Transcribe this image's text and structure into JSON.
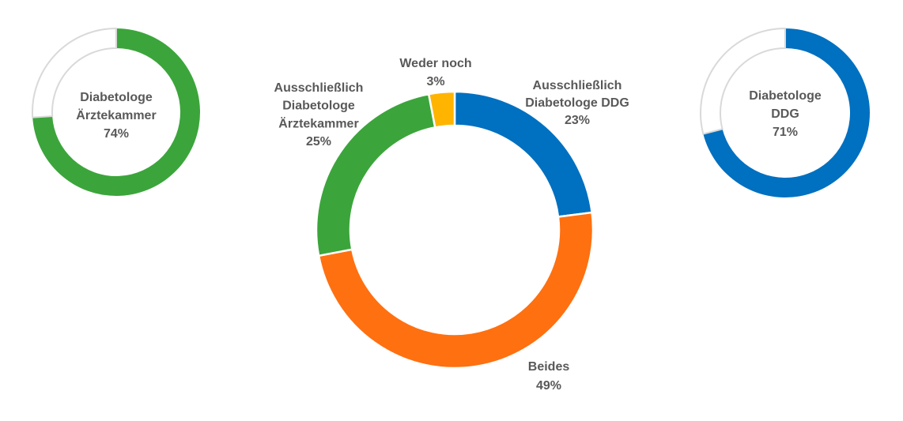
{
  "chart_data": [
    {
      "type": "pie",
      "variant": "donut",
      "title": "Diabetologe Ärztekammer",
      "series": [
        {
          "name": "Diabetologe Ärztekammer",
          "value": 74,
          "color": "#3BA53B"
        },
        {
          "name": "Rest",
          "value": 26,
          "color": "#FFFFFF"
        }
      ],
      "label_lines": [
        "Diabetologe",
        "Ärztekammer",
        "74%"
      ]
    },
    {
      "type": "pie",
      "variant": "donut",
      "title": "",
      "series": [
        {
          "name": "Ausschließlich Diabetologe DDG",
          "value": 23,
          "color": "#0070C0",
          "label_lines": [
            "Ausschließlich",
            "Diabetologe DDG",
            "23%"
          ]
        },
        {
          "name": "Beides",
          "value": 49,
          "color": "#FF7010",
          "label_lines": [
            "Beides",
            "49%"
          ]
        },
        {
          "name": "Ausschließlich Diabetologe Ärztekammer",
          "value": 25,
          "color": "#3BA53B",
          "label_lines": [
            "Ausschließlich",
            "Diabetologe",
            "Ärztekammer",
            "25%"
          ]
        },
        {
          "name": "Weder noch",
          "value": 3,
          "color": "#FFB400",
          "label_lines": [
            "Weder noch",
            "3%"
          ]
        }
      ]
    },
    {
      "type": "pie",
      "variant": "donut",
      "title": "Diabetologe DDG",
      "series": [
        {
          "name": "Diabetologe DDG",
          "value": 71,
          "color": "#0070C0"
        },
        {
          "name": "Rest",
          "value": 29,
          "color": "#FFFFFF"
        }
      ],
      "label_lines": [
        "Diabetologe",
        "DDG",
        "71%"
      ]
    }
  ]
}
